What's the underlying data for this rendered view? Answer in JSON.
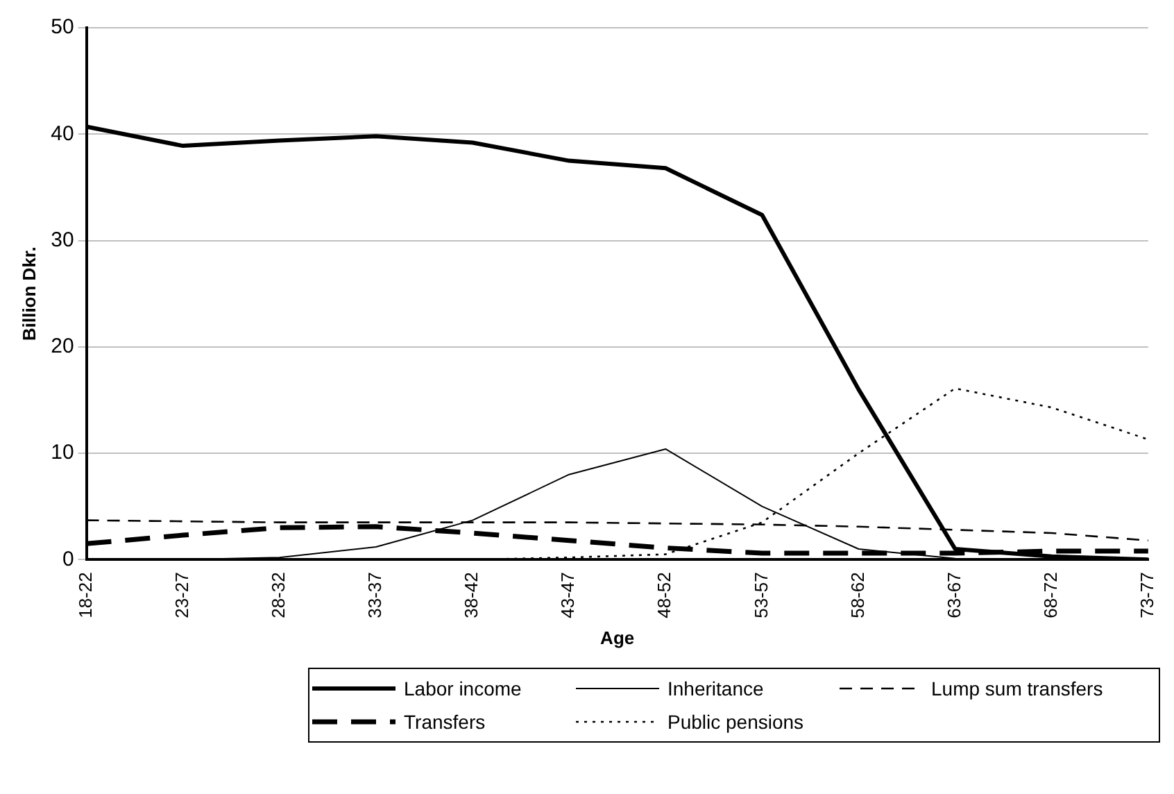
{
  "chart_data": {
    "type": "line",
    "xlabel": "Age",
    "ylabel": "Billion Dkr.",
    "categories": [
      "18-22",
      "23-27",
      "28-32",
      "33-37",
      "38-42",
      "43-47",
      "48-52",
      "53-57",
      "58-62",
      "63-67",
      "68-72",
      "73-77"
    ],
    "ylim": [
      0,
      50
    ],
    "yticks": [
      0,
      10,
      20,
      30,
      40,
      50
    ],
    "grid": "y",
    "legend": "bottom",
    "marker": "none",
    "series": [
      {
        "name": "Labor income",
        "color": "#000000",
        "line_style": "solid",
        "values": [
          40.7,
          38.9,
          39.4,
          39.8,
          39.2,
          37.5,
          36.8,
          32.4,
          16,
          1.0,
          0.3,
          0
        ]
      },
      {
        "name": "Inheritance",
        "color": "#000000",
        "line_style": "solid",
        "values": [
          0,
          0,
          0.2,
          1.2,
          3.7,
          8.0,
          10.4,
          5.0,
          1.0,
          0.1,
          0,
          0
        ]
      },
      {
        "name": "Lump sum transfers",
        "color": "#000000",
        "line_style": "dashed",
        "values": [
          3.7,
          3.6,
          3.5,
          3.5,
          3.5,
          3.5,
          3.4,
          3.3,
          3.1,
          2.8,
          2.5,
          1.8
        ]
      },
      {
        "name": "Transfers",
        "color": "#000000",
        "line_style": "dashed",
        "values": [
          1.5,
          2.3,
          3.0,
          3.1,
          2.5,
          1.8,
          1.1,
          0.6,
          0.6,
          0.6,
          0.8,
          0.8
        ]
      },
      {
        "name": "Public pensions",
        "color": "#000000",
        "line_style": "dotted",
        "values": [
          null,
          null,
          null,
          null,
          0,
          0.2,
          0.5,
          3.5,
          10,
          16.1,
          14.3,
          11.3
        ]
      }
    ]
  }
}
